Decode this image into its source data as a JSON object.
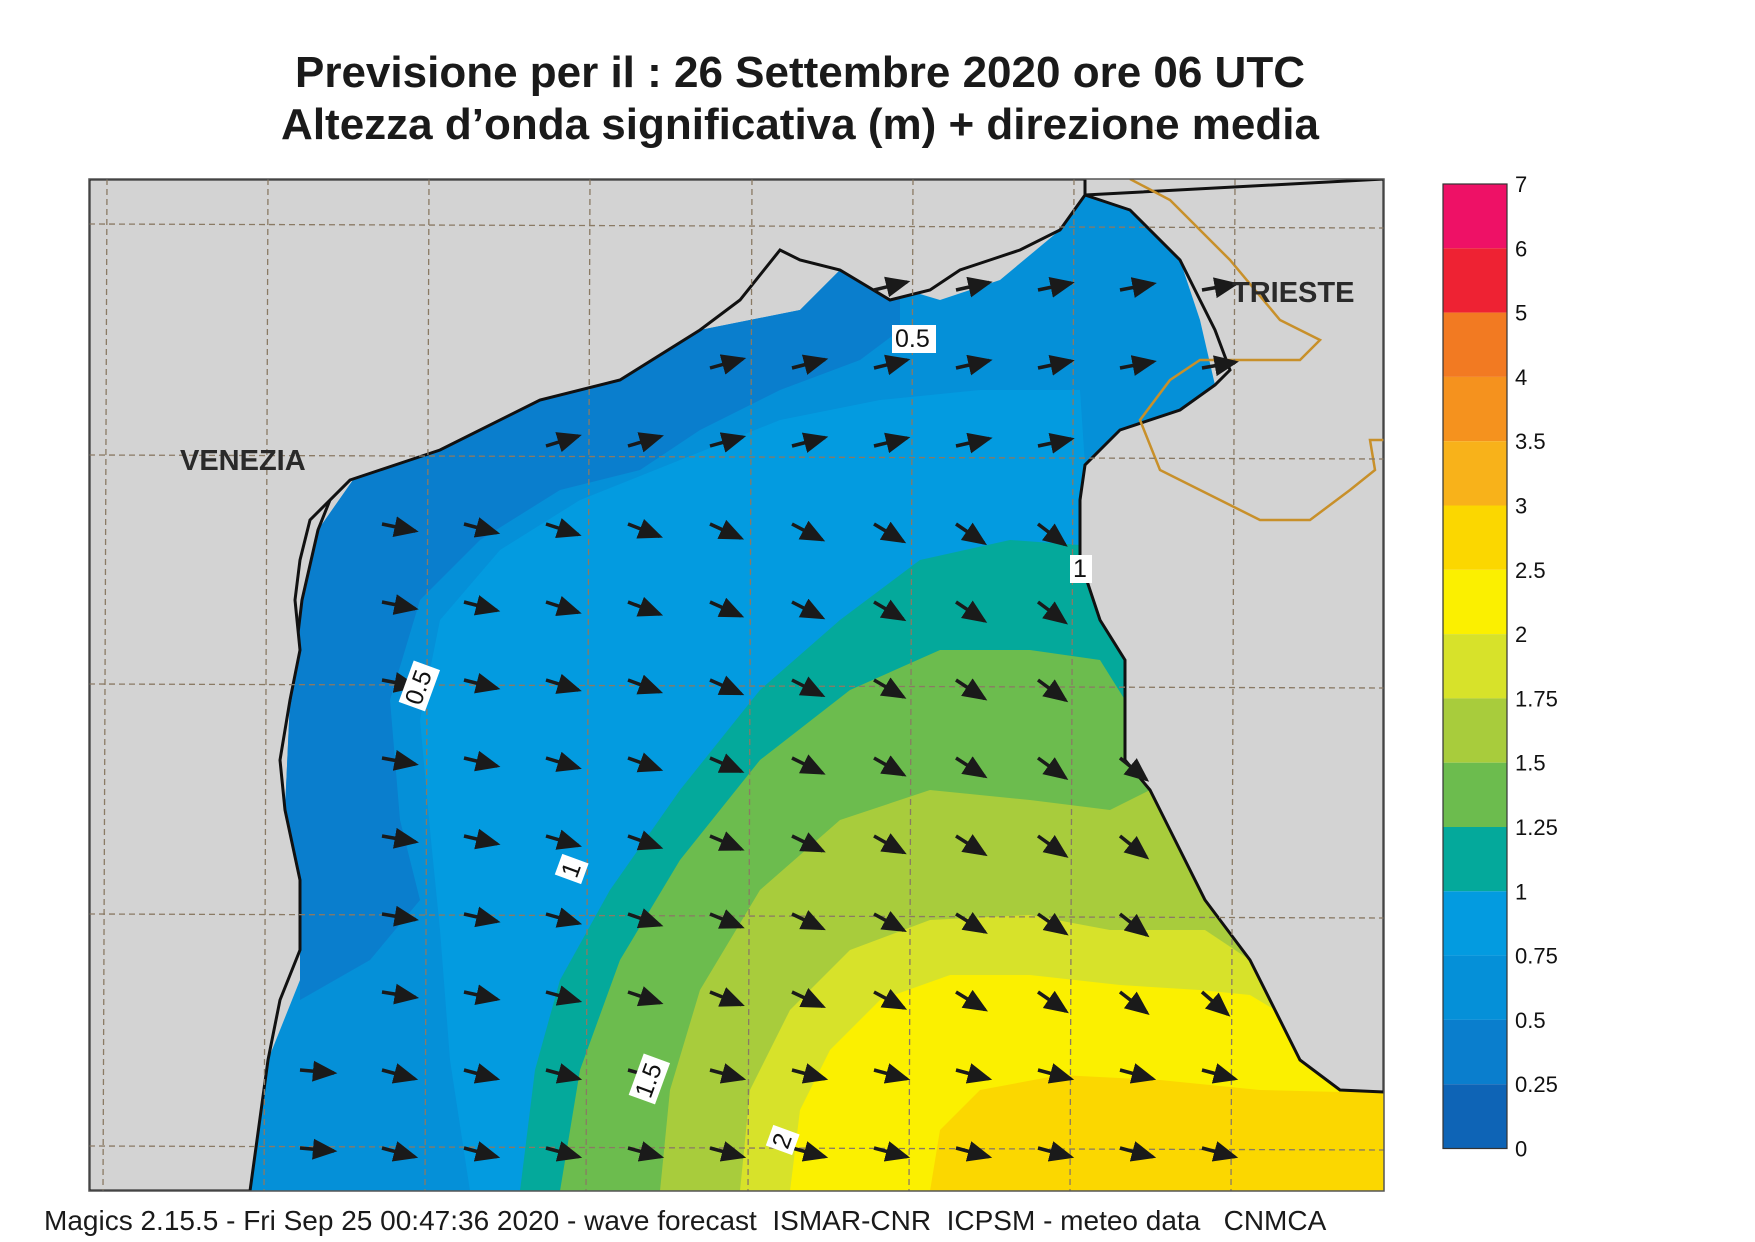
{
  "header": {
    "title_line1": "Previsione per il  :  26 Settembre 2020   ore 06 UTC",
    "title_line2": "Altezza d’onda significativa (m) + direzione media"
  },
  "map": {
    "cities": [
      {
        "name": "VENEZIA"
      },
      {
        "name": "TRIESTE"
      }
    ],
    "contour_labels": [
      "0.5",
      "0.5",
      "1",
      "1",
      "1.5",
      "2"
    ],
    "land_color": "#d3d3d3",
    "coast_color": "#111111",
    "border_color": "#c8902a",
    "grid_color": "#8a7a64"
  },
  "legend": {
    "labels": [
      "7",
      "6",
      "5",
      "4",
      "3.5",
      "3",
      "2.5",
      "2",
      "1.75",
      "1.5",
      "1.25",
      "1",
      "0.75",
      "0.5",
      "0.25",
      "0"
    ],
    "colors": [
      "#ee1166",
      "#ee2233",
      "#f27a22",
      "#f5921e",
      "#f8b21a",
      "#fbd700",
      "#fbf000",
      "#d7e22a",
      "#a8cc3c",
      "#6cbc4e",
      "#04a99b",
      "#039be0",
      "#0590d8",
      "#0a7ecd",
      "#0e64b6"
    ]
  },
  "footer": {
    "text": "Magics 2.15.5 - Fri Sep 25 00:47:36 2020 - wave forecast  ISMAR-CNR  ICPSM - meteo data   CNMCA"
  }
}
